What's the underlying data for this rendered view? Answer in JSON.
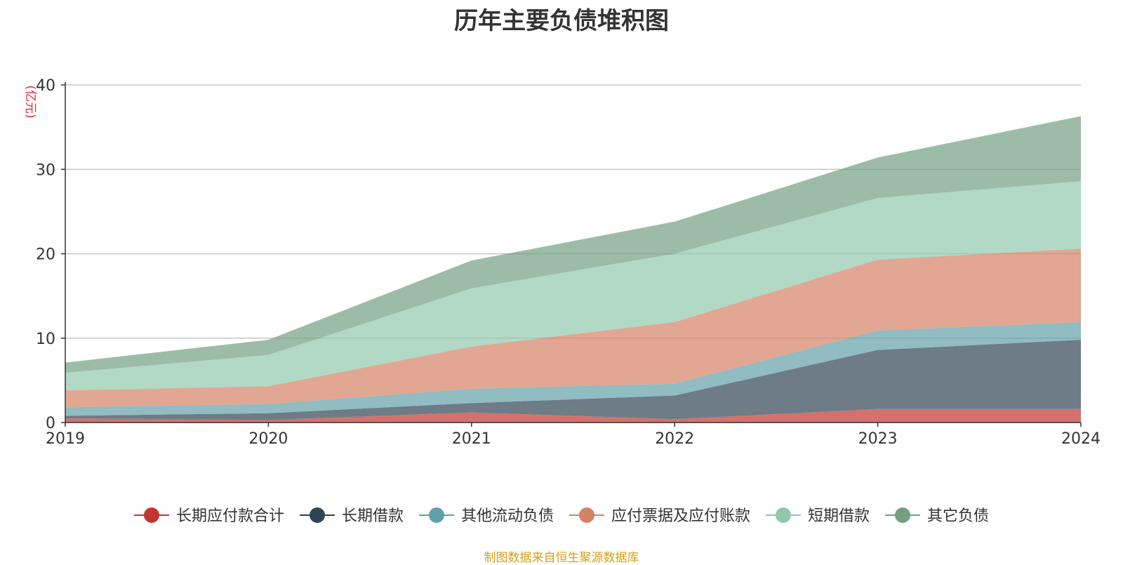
{
  "chart_data": {
    "type": "area",
    "stacked": true,
    "title": "历年主要负债堆积图",
    "unit_label": "(亿元)",
    "source_note": "制图数据来自恒生聚源数据库",
    "x": [
      "2019",
      "2020",
      "2021",
      "2022",
      "2023",
      "2024"
    ],
    "ylim": [
      0,
      40
    ],
    "yticks": [
      0,
      10,
      20,
      30,
      40
    ],
    "grid": true,
    "legend_position": "bottom",
    "series": [
      {
        "name": "长期应付款合计",
        "color": "#c23531",
        "values": [
          0.5,
          0.3,
          1.2,
          0.4,
          1.6,
          1.6
        ]
      },
      {
        "name": "长期借款",
        "color": "#2f4554",
        "values": [
          0.3,
          0.8,
          1.1,
          2.8,
          7.0,
          8.2
        ]
      },
      {
        "name": "其他流动负债",
        "color": "#61a0a8",
        "values": [
          1.0,
          1.1,
          1.7,
          1.4,
          2.3,
          2.1
        ]
      },
      {
        "name": "应付票据及应付账款",
        "color": "#d48265",
        "values": [
          2.0,
          2.1,
          5.0,
          7.3,
          8.4,
          8.7
        ]
      },
      {
        "name": "短期借款",
        "color": "#91c7ae",
        "values": [
          2.1,
          3.7,
          6.9,
          8.1,
          7.3,
          8.0
        ]
      },
      {
        "name": "其它负债",
        "color": "#749f83",
        "values": [
          1.2,
          1.8,
          3.3,
          3.8,
          4.8,
          7.7
        ]
      }
    ]
  }
}
